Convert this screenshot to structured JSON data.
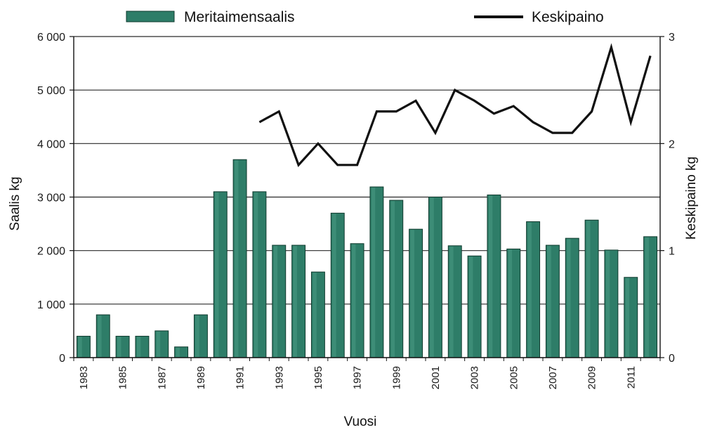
{
  "chart_data": {
    "type": "bar+line",
    "categories": [
      1983,
      1984,
      1985,
      1986,
      1987,
      1988,
      1989,
      1990,
      1991,
      1992,
      1993,
      1994,
      1995,
      1996,
      1997,
      1998,
      1999,
      2000,
      2001,
      2002,
      2003,
      2004,
      2005,
      2006,
      2007,
      2008,
      2009,
      2010,
      2011,
      2012
    ],
    "x_tick_labels": [
      "1983",
      "1985",
      "1987",
      "1989",
      "1991",
      "1993",
      "1995",
      "1997",
      "1999",
      "2001",
      "2003",
      "2005",
      "2007",
      "2009",
      "2011"
    ],
    "series": [
      {
        "name": "Meritaimensaalis",
        "kind": "bar",
        "axis": "left",
        "color": "#2e7d68",
        "values": [
          400,
          800,
          400,
          400,
          500,
          200,
          800,
          3100,
          3700,
          3100,
          2100,
          2100,
          1600,
          2700,
          2130,
          3190,
          2940,
          2400,
          3000,
          2090,
          1900,
          3040,
          2030,
          2540,
          2100,
          2230,
          2570,
          2010,
          1500,
          2260
        ]
      },
      {
        "name": "Keskipaino",
        "kind": "line",
        "axis": "right",
        "color": "#111111",
        "values": [
          null,
          null,
          null,
          null,
          null,
          null,
          null,
          null,
          null,
          2.2,
          2.3,
          1.8,
          2.0,
          1.8,
          1.8,
          2.3,
          2.3,
          2.4,
          2.1,
          2.5,
          2.4,
          2.28,
          2.35,
          2.2,
          2.1,
          2.1,
          2.3,
          2.9,
          2.2,
          2.82
        ]
      }
    ],
    "xlabel": "Vuosi",
    "ylabel_left": "Saalis kg",
    "ylabel_right": "Keskipaino kg",
    "ylim_left": [
      0,
      6000
    ],
    "ylim_right": [
      0,
      3
    ],
    "yticks_left": [
      0,
      1000,
      2000,
      3000,
      4000,
      5000,
      6000
    ],
    "yticks_left_labels": [
      "0",
      "1 000",
      "2 000",
      "3 000",
      "4 000",
      "5 000",
      "6 000"
    ],
    "yticks_right": [
      0,
      1,
      2,
      3
    ],
    "yticks_right_labels": [
      "0",
      "1",
      "2",
      "3"
    ],
    "grid": "horizontal",
    "legend_position": "top"
  }
}
